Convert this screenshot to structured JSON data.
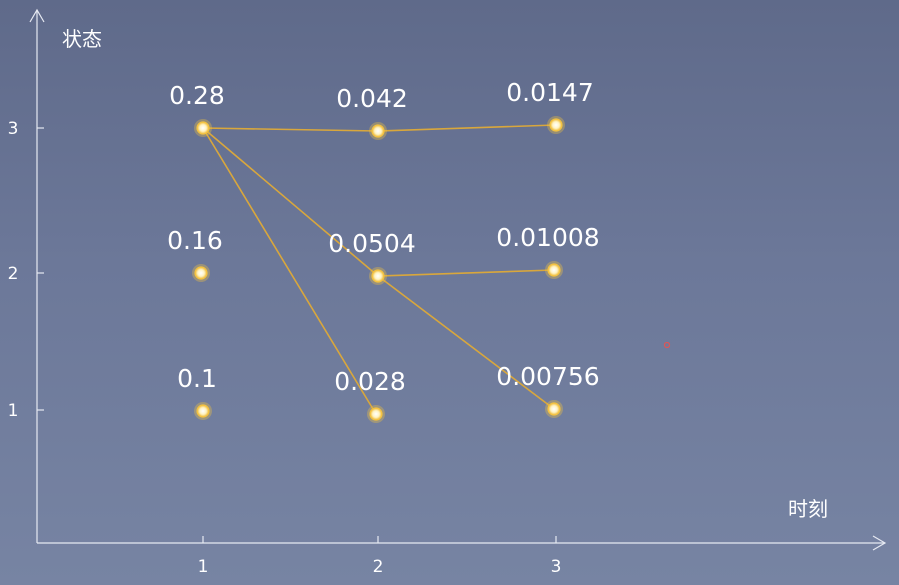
{
  "axes": {
    "y_title": "状态",
    "x_title": "时刻",
    "x_ticks": [
      "1",
      "2",
      "3"
    ],
    "y_ticks": [
      "1",
      "2",
      "3"
    ]
  },
  "nodes": [
    {
      "id": "t1s3",
      "time": 1,
      "state": 3,
      "label": "0.28"
    },
    {
      "id": "t1s2",
      "time": 1,
      "state": 2,
      "label": "0.16"
    },
    {
      "id": "t1s1",
      "time": 1,
      "state": 1,
      "label": "0.1"
    },
    {
      "id": "t2s3",
      "time": 2,
      "state": 3,
      "label": "0.042"
    },
    {
      "id": "t2s2",
      "time": 2,
      "state": 2,
      "label": "0.0504"
    },
    {
      "id": "t2s1",
      "time": 2,
      "state": 1,
      "label": "0.028"
    },
    {
      "id": "t3s3",
      "time": 3,
      "state": 3,
      "label": "0.0147"
    },
    {
      "id": "t3s2",
      "time": 3,
      "state": 2,
      "label": "0.01008"
    },
    {
      "id": "t3s1",
      "time": 3,
      "state": 1,
      "label": "0.00756"
    }
  ],
  "edges": [
    {
      "from": "t1s3",
      "to": "t2s3"
    },
    {
      "from": "t1s3",
      "to": "t2s2"
    },
    {
      "from": "t1s3",
      "to": "t2s1"
    },
    {
      "from": "t2s3",
      "to": "t3s3"
    },
    {
      "from": "t2s2",
      "to": "t3s2"
    },
    {
      "from": "t2s2",
      "to": "t3s1"
    }
  ],
  "colors": {
    "axis": "#e6e9f2",
    "edge": "#d9a73c",
    "node_fill": "#fff7d6",
    "node_glow": "#f3c23f",
    "label": "#ffffff",
    "cursor_dot": "#e05555"
  }
}
